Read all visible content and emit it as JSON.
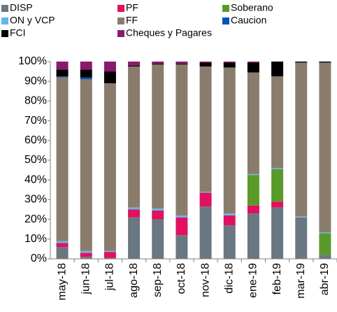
{
  "chart_data": {
    "type": "stacked_bar",
    "categories": [
      "may-18",
      "jun-18",
      "jul-18",
      "ago-18",
      "sep-18",
      "oct-18",
      "nov-18",
      "dic-18",
      "ene-19",
      "feb-19",
      "mar-19",
      "abr-19"
    ],
    "series": [
      {
        "name": "DISP",
        "color": "#6b7780",
        "values": [
          6,
          1,
          0.5,
          21,
          20,
          12,
          26.5,
          17,
          23,
          26,
          21,
          2
        ]
      },
      {
        "name": "PF",
        "color": "#e0115f",
        "values": [
          2,
          2,
          3,
          4,
          4.5,
          9,
          7,
          5,
          4,
          3,
          0,
          0
        ]
      },
      {
        "name": "Soberano",
        "color": "#5a9a2a",
        "values": [
          0,
          0,
          0,
          0,
          0,
          0,
          0,
          0,
          15.5,
          16.5,
          0,
          11
        ]
      },
      {
        "name": "ON y VCP",
        "color": "#63b6e8",
        "values": [
          1,
          1,
          0.5,
          1,
          1,
          1,
          0.5,
          1,
          0.5,
          0.5,
          0.5,
          0.5
        ]
      },
      {
        "name": "FF",
        "color": "#8a7c6c",
        "values": [
          83,
          87,
          85,
          71.5,
          73,
          76.5,
          63.5,
          74,
          51.5,
          46.5,
          78,
          86
        ]
      },
      {
        "name": "Caucion",
        "color": "#0052b8",
        "values": [
          0.5,
          1,
          0,
          0,
          0,
          0,
          0,
          0,
          0,
          0,
          0,
          0
        ]
      },
      {
        "name": "FCI",
        "color": "#000000",
        "values": [
          3.5,
          4,
          6,
          0.5,
          0.5,
          0.5,
          2,
          2.5,
          5,
          7.5,
          0.5,
          0.5
        ]
      },
      {
        "name": "Cheques y Pagares",
        "color": "#8b1a6e",
        "values": [
          4,
          4,
          5,
          2,
          1,
          1,
          0.5,
          0.5,
          0.5,
          0,
          0,
          0
        ]
      }
    ],
    "ylim": [
      0,
      100
    ],
    "yticks": [
      {
        "value": 0,
        "label": "0%"
      },
      {
        "value": 10,
        "label": "10%"
      },
      {
        "value": 20,
        "label": "20%"
      },
      {
        "value": 30,
        "label": "30%"
      },
      {
        "value": 40,
        "label": "40%"
      },
      {
        "value": 50,
        "label": "50%"
      },
      {
        "value": 60,
        "label": "60%"
      },
      {
        "value": 70,
        "label": "70%"
      },
      {
        "value": 80,
        "label": "80%"
      },
      {
        "value": 90,
        "label": "90%"
      },
      {
        "value": 100,
        "label": "100%"
      }
    ],
    "legend": "top",
    "grid": false
  }
}
